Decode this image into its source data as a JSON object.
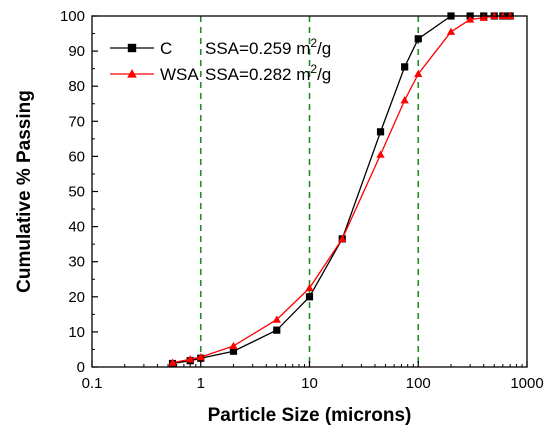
{
  "chart_data": {
    "type": "line",
    "xscale": "log",
    "xlabel": "Particle Size (microns)",
    "ylabel": "Cumulative % Passing",
    "xlim": [
      0.1,
      1000
    ],
    "ylim": [
      0,
      100
    ],
    "xticks": [
      0.1,
      1,
      10,
      100,
      1000
    ],
    "xtick_labels": [
      "0.1",
      "1",
      "10",
      "100",
      "1000"
    ],
    "yticks": [
      0,
      10,
      20,
      30,
      40,
      50,
      60,
      70,
      80,
      90,
      100
    ],
    "ytick_labels": [
      "0",
      "10",
      "20",
      "30",
      "40",
      "50",
      "60",
      "70",
      "80",
      "90",
      "100"
    ],
    "reference_lines": {
      "x": [
        1,
        10,
        100
      ],
      "style": "dashed",
      "color": "#228b22"
    },
    "legend_position": "top-left",
    "series": [
      {
        "name": "C",
        "ssa_label": "SSA=0.259 m",
        "ssa_unit_exp": "2",
        "ssa_unit_tail": "/g",
        "marker": "square",
        "color": "#000000",
        "x": [
          0.55,
          0.8,
          1.0,
          2.0,
          5.0,
          10.0,
          20.0,
          45.0,
          75.0,
          100.0,
          200.0,
          300.0,
          400.0,
          500.0,
          600.0,
          700.0
        ],
        "y": [
          1.0,
          1.8,
          2.5,
          4.5,
          10.5,
          20.0,
          36.5,
          67.0,
          85.5,
          93.5,
          100.0,
          100.0,
          100.0,
          100.0,
          100.0,
          100.0
        ]
      },
      {
        "name": "WSA",
        "ssa_label": "SSA=0.282 m",
        "ssa_unit_exp": "2",
        "ssa_unit_tail": "/g",
        "marker": "triangle",
        "color": "#ff0000",
        "x": [
          0.55,
          0.8,
          1.0,
          2.0,
          5.0,
          10.0,
          20.0,
          45.0,
          75.0,
          100.0,
          200.0,
          300.0,
          400.0,
          500.0,
          600.0,
          700.0
        ],
        "y": [
          1.2,
          2.2,
          2.8,
          6.0,
          13.5,
          22.5,
          36.5,
          60.5,
          76.0,
          83.5,
          95.5,
          99.0,
          99.5,
          100.0,
          100.0,
          100.0
        ]
      }
    ]
  }
}
